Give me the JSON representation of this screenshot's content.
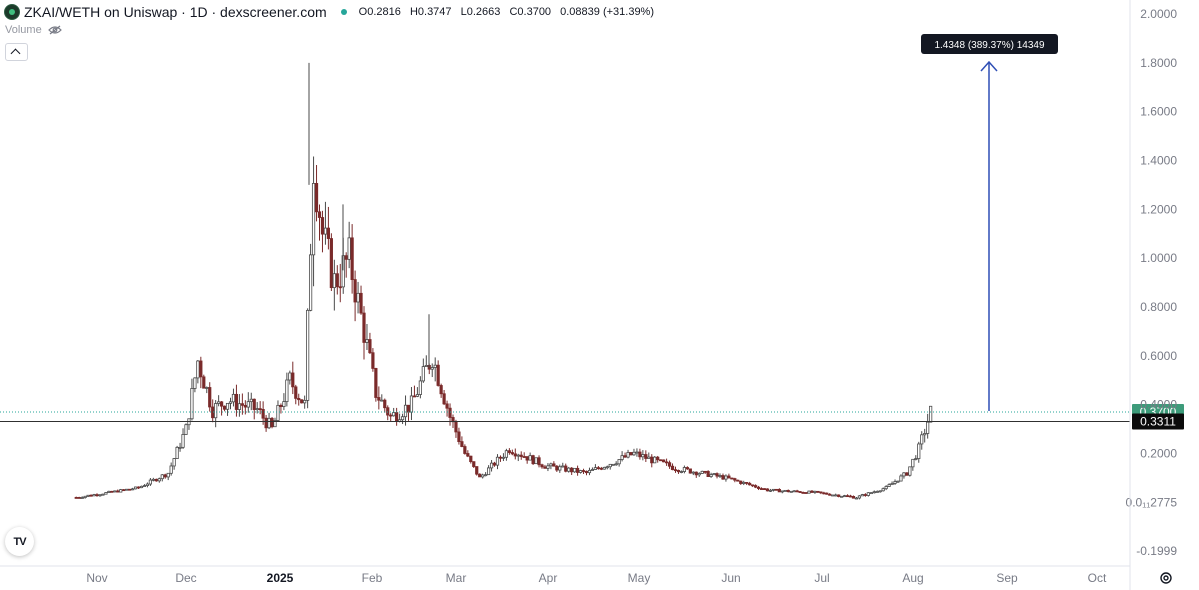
{
  "header": {
    "symbol": "ZKAI/WETH on Uniswap · 1D · dexscreener.com",
    "ohlc": {
      "o_label": "O",
      "o": "0.2816",
      "h_label": "H",
      "h": "0.3747",
      "l_label": "L",
      "l": "0.2663",
      "c_label": "C",
      "c": "0.3700",
      "change": "0.08839 (+31.39%)"
    },
    "volume_label": "Volume"
  },
  "colors": {
    "up": "#26a69a",
    "down": "#ef5350",
    "candle": "#4a4a4a",
    "candle_red": "#7a2a2a",
    "arrow": "#2f4fb5",
    "current_price_bg": "#3d9b7a",
    "ref_price_bg": "#0b0b0b",
    "axis_text": "#787b86",
    "line": "#303030"
  },
  "icons": {
    "settings": "gear-icon",
    "logo": "tradingview-logo-icon",
    "visibility": "eye-off-icon"
  },
  "chart_data": {
    "type": "candlestick",
    "title": "ZKAI/WETH on Uniswap · 1D · dexscreener.com",
    "ylim": [
      -0.1999,
      2.0
    ],
    "y_ticks": [
      "2.0000",
      "1.8000",
      "1.6000",
      "1.4000",
      "1.2000",
      "1.0000",
      "0.8000",
      "0.6000",
      "0.4000",
      "0.2000",
      "0.0₁₁2775",
      "-0.1999"
    ],
    "x_ticks": [
      "Nov",
      "Dec",
      "2025",
      "Feb",
      "Mar",
      "Apr",
      "May",
      "Jun",
      "Jul",
      "Aug",
      "Sep",
      "Oct"
    ],
    "current_price": "0.3700",
    "horizontal_line_price": "0.3311",
    "measure_label": "1.4348 (389.37%) 14349",
    "series": [
      {
        "date": "2024-10-25",
        "close": 0.02
      },
      {
        "date": "2024-11-05",
        "close": 0.04
      },
      {
        "date": "2024-11-15",
        "close": 0.06
      },
      {
        "date": "2024-11-25",
        "close": 0.12
      },
      {
        "date": "2024-12-01",
        "close": 0.3
      },
      {
        "date": "2024-12-05",
        "close": 0.58
      },
      {
        "date": "2024-12-10",
        "close": 0.38
      },
      {
        "date": "2024-12-15",
        "close": 0.42
      },
      {
        "date": "2024-12-20",
        "close": 0.4
      },
      {
        "date": "2024-12-25",
        "close": 0.38
      },
      {
        "date": "2024-12-30",
        "close": 0.3
      },
      {
        "date": "2025-01-05",
        "close": 0.5
      },
      {
        "date": "2025-01-10",
        "close": 0.4
      },
      {
        "date": "2025-01-13",
        "close": 1.4
      },
      {
        "date": "2025-01-16",
        "close": 1.1
      },
      {
        "date": "2025-01-20",
        "close": 0.9
      },
      {
        "date": "2025-01-25",
        "close": 1.0
      },
      {
        "date": "2025-01-30",
        "close": 0.7
      },
      {
        "date": "2025-02-03",
        "close": 0.45
      },
      {
        "date": "2025-02-08",
        "close": 0.35
      },
      {
        "date": "2025-02-15",
        "close": 0.4
      },
      {
        "date": "2025-02-22",
        "close": 0.6
      },
      {
        "date": "2025-02-28",
        "close": 0.35
      },
      {
        "date": "2025-03-05",
        "close": 0.2
      },
      {
        "date": "2025-03-10",
        "close": 0.1
      },
      {
        "date": "2025-03-20",
        "close": 0.22
      },
      {
        "date": "2025-04-01",
        "close": 0.15
      },
      {
        "date": "2025-04-15",
        "close": 0.12
      },
      {
        "date": "2025-05-01",
        "close": 0.2
      },
      {
        "date": "2025-05-15",
        "close": 0.14
      },
      {
        "date": "2025-06-01",
        "close": 0.1
      },
      {
        "date": "2025-06-15",
        "close": 0.05
      },
      {
        "date": "2025-07-01",
        "close": 0.04
      },
      {
        "date": "2025-07-15",
        "close": 0.02
      },
      {
        "date": "2025-07-25",
        "close": 0.06
      },
      {
        "date": "2025-08-01",
        "close": 0.12
      },
      {
        "date": "2025-08-05",
        "close": 0.22
      },
      {
        "date": "2025-08-09",
        "close": 0.37
      }
    ]
  }
}
